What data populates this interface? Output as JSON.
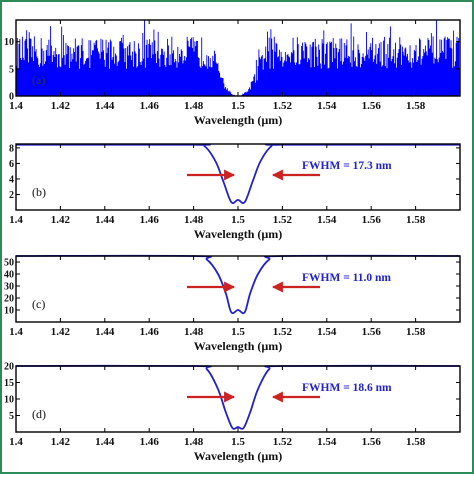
{
  "figure": {
    "border_color": "#2e8b57",
    "curve_color": "#2222cc",
    "arrow_color": "#cc2222",
    "noise_color": "#0000ff"
  },
  "chart_data": [
    {
      "type": "bar",
      "panel_label": "(a)",
      "xlabel": "Wavelength (µm)",
      "ylabel": "",
      "xlim": [
        1.4,
        1.6
      ],
      "ylim": [
        0,
        14
      ],
      "xticks": [
        "1.4",
        "1.42",
        "1.44",
        "1.46",
        "1.48",
        "1.5",
        "1.52",
        "1.54",
        "1.56",
        "1.58"
      ],
      "yticks": [
        "0",
        "5",
        "10"
      ],
      "description_values": {
        "baseline_level_mean": 8,
        "noise_max": 14,
        "dip_center_um": 1.5,
        "dip_min": 0
      }
    },
    {
      "type": "line",
      "panel_label": "(b)",
      "xlabel": "Wavelength (µm)",
      "ylabel": "",
      "xlim": [
        1.4,
        1.6
      ],
      "ylim": [
        0,
        8.5
      ],
      "xticks": [
        "1.4",
        "1.42",
        "1.44",
        "1.46",
        "1.48",
        "1.5",
        "1.52",
        "1.54",
        "1.56",
        "1.58"
      ],
      "yticks": [
        "2",
        "4",
        "6",
        "8"
      ],
      "annotation": "FWHM = 17.3 nm",
      "fwhm_nm": 17.3,
      "series": [
        {
          "x": [
            1.4,
            1.48,
            1.485,
            1.49,
            1.4935,
            1.497,
            1.5,
            1.503,
            1.5065,
            1.51,
            1.515,
            1.52,
            1.6
          ],
          "y": [
            8.4,
            8.4,
            8.2,
            6.2,
            3.6,
            1.0,
            1.3,
            1.0,
            3.6,
            6.2,
            8.2,
            8.4,
            8.4
          ]
        }
      ]
    },
    {
      "type": "line",
      "panel_label": "(c)",
      "xlabel": "Wavelength (µm)",
      "ylabel": "",
      "xlim": [
        1.4,
        1.6
      ],
      "ylim": [
        0,
        55
      ],
      "xticks": [
        "1.4",
        "1.42",
        "1.44",
        "1.46",
        "1.48",
        "1.5",
        "1.52",
        "1.54",
        "1.56",
        "1.58"
      ],
      "yticks": [
        "10",
        "20",
        "30",
        "40",
        "50"
      ],
      "annotation": "FWHM = 11.0 nm",
      "fwhm_nm": 11.0,
      "series": [
        {
          "x": [
            1.4,
            1.48,
            1.486,
            1.491,
            1.4945,
            1.497,
            1.5,
            1.503,
            1.5055,
            1.509,
            1.514,
            1.52,
            1.6
          ],
          "y": [
            55,
            55,
            52,
            40,
            24,
            8,
            10,
            8,
            24,
            40,
            52,
            55,
            55
          ]
        }
      ]
    },
    {
      "type": "line",
      "panel_label": "(d)",
      "xlabel": "Wavelength (µm)",
      "ylabel": "",
      "xlim": [
        1.4,
        1.6
      ],
      "ylim": [
        0,
        20
      ],
      "xticks": [
        "1.4",
        "1.42",
        "1.44",
        "1.46",
        "1.48",
        "1.5",
        "1.52",
        "1.54",
        "1.56",
        "1.58"
      ],
      "yticks": [
        "5",
        "10",
        "15",
        "20"
      ],
      "annotation": "FWHM = 18.6 nm",
      "fwhm_nm": 18.6,
      "series": [
        {
          "x": [
            1.4,
            1.48,
            1.486,
            1.491,
            1.4945,
            1.4975,
            1.5,
            1.5025,
            1.5055,
            1.509,
            1.514,
            1.52,
            1.6
          ],
          "y": [
            20,
            20,
            19,
            13,
            6,
            1.2,
            1.5,
            1.2,
            6,
            13,
            19,
            20,
            20
          ]
        }
      ]
    }
  ]
}
